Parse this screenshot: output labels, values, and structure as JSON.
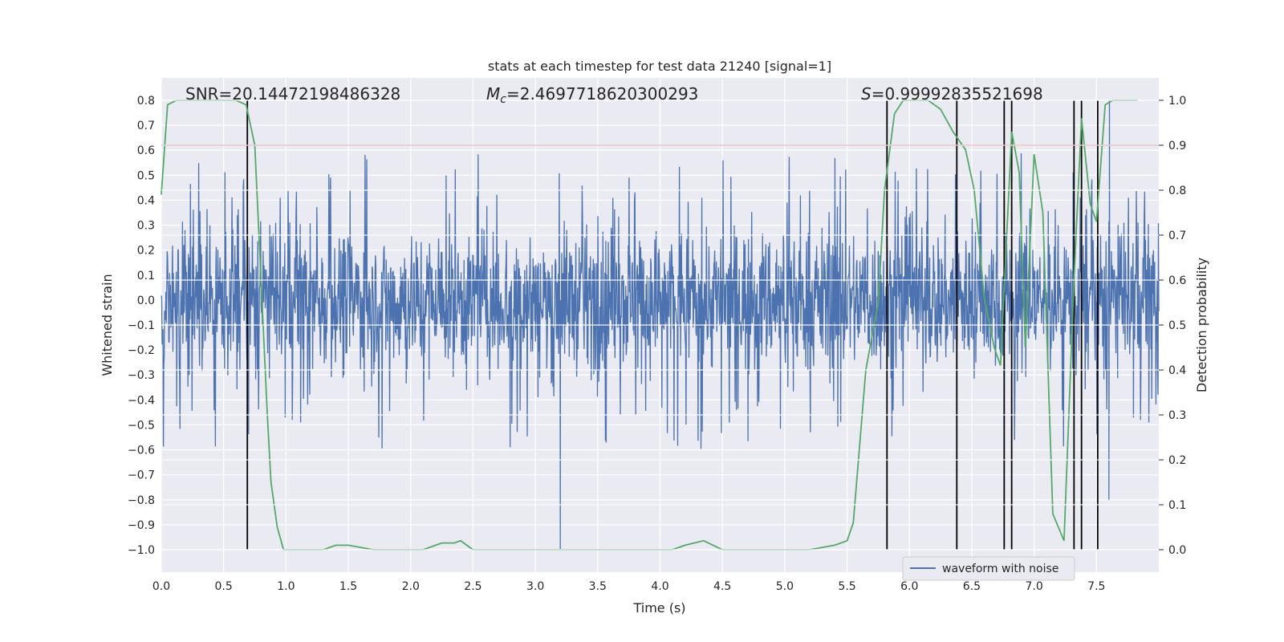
{
  "chart_data": {
    "type": "line",
    "title": "stats at each timestep for test data 21240 [signal=1]",
    "xlabel": "Time (s)",
    "ylabel_left": "Whitened strain",
    "ylabel_right": "Detection probability",
    "xlim": [
      0.0,
      8.0
    ],
    "ylim_left": [
      -1.09,
      0.89
    ],
    "ylim_right": [
      -0.05,
      1.05
    ],
    "x_ticks": [
      "0.0",
      "0.5",
      "1.0",
      "1.5",
      "2.0",
      "2.5",
      "3.0",
      "3.5",
      "4.0",
      "4.5",
      "5.0",
      "5.5",
      "6.0",
      "6.5",
      "7.0",
      "7.5"
    ],
    "x_tick_values": [
      0,
      0.5,
      1,
      1.5,
      2,
      2.5,
      3,
      3.5,
      4,
      4.5,
      5,
      5.5,
      6,
      6.5,
      7,
      7.5
    ],
    "y_left_ticks": [
      "0.8",
      "0.7",
      "0.6",
      "0.5",
      "0.4",
      "0.3",
      "0.2",
      "0.1",
      "0.0",
      "−0.1",
      "−0.2",
      "−0.3",
      "−0.4",
      "−0.5",
      "−0.6",
      "−0.7",
      "−0.8",
      "−0.9",
      "−1.0"
    ],
    "y_left_tick_values": [
      0.8,
      0.7,
      0.6,
      0.5,
      0.4,
      0.3,
      0.2,
      0.1,
      0,
      -0.1,
      -0.2,
      -0.3,
      -0.4,
      -0.5,
      -0.6,
      -0.7,
      -0.8,
      -0.9,
      -1.0
    ],
    "y_right_ticks": [
      "1.0",
      "0.9",
      "0.8",
      "0.7",
      "0.6",
      "0.5",
      "0.4",
      "0.3",
      "0.2",
      "0.1",
      "0.0"
    ],
    "y_right_tick_values": [
      1.0,
      0.9,
      0.8,
      0.7,
      0.6,
      0.5,
      0.4,
      0.3,
      0.2,
      0.1,
      0.0
    ],
    "annotations": {
      "snr": "SNR=20.14472198486328",
      "mc_symbol": "M",
      "mc_sub": "c",
      "mc_value": "=2.4697718620300293",
      "s_symbol": "S",
      "s_value": "=0.99992835521698"
    },
    "legend": {
      "label": "waveform with noise",
      "location": "lower-right"
    },
    "threshold": {
      "probability": 0.9,
      "color": "#c44e52"
    },
    "waveform": {
      "name": "waveform with noise",
      "color": "#4c72b0",
      "typical_amplitude": 0.25,
      "peak_amplitude": 0.6,
      "notable_spikes": [
        {
          "x": 3.2,
          "min": -1.0
        },
        {
          "x": 7.6,
          "max": 0.8,
          "min": -0.8
        }
      ]
    },
    "detection_probability": {
      "name": "detection probability",
      "color": "#55a868",
      "x": [
        0.0,
        0.05,
        0.12,
        0.2,
        0.3,
        0.4,
        0.5,
        0.6,
        0.68,
        0.75,
        0.8,
        0.85,
        0.88,
        0.93,
        0.98,
        1.0,
        1.1,
        1.3,
        1.4,
        1.5,
        1.7,
        1.9,
        2.1,
        2.2,
        2.25,
        2.35,
        2.4,
        2.5,
        2.6,
        2.8,
        3.0,
        3.2,
        3.3,
        3.5,
        3.7,
        3.9,
        4.1,
        4.2,
        4.35,
        4.5,
        4.8,
        5.0,
        5.2,
        5.4,
        5.5,
        5.55,
        5.65,
        5.75,
        5.8,
        5.88,
        5.95,
        6.05,
        6.15,
        6.25,
        6.35,
        6.45,
        6.52,
        6.6,
        6.68,
        6.73,
        6.82,
        6.88,
        6.93,
        7.0,
        7.07,
        7.15,
        7.24,
        7.32,
        7.38,
        7.45,
        7.5,
        7.57,
        7.63,
        7.7,
        7.83
      ],
      "values": [
        0.79,
        0.99,
        1.0,
        1.0,
        1.0,
        1.0,
        1.0,
        1.0,
        0.99,
        0.9,
        0.6,
        0.3,
        0.15,
        0.05,
        0.0,
        0.0,
        0.0,
        0.0,
        0.01,
        0.01,
        0.0,
        0.0,
        0.0,
        0.01,
        0.015,
        0.015,
        0.02,
        0.0,
        0.0,
        0.0,
        0.0,
        0.0,
        0.0,
        0.0,
        0.0,
        0.0,
        0.0,
        0.01,
        0.02,
        0.0,
        0.0,
        0.0,
        0.0,
        0.01,
        0.02,
        0.06,
        0.4,
        0.55,
        0.8,
        0.97,
        1.0,
        1.0,
        1.0,
        0.98,
        0.93,
        0.89,
        0.8,
        0.56,
        0.45,
        0.41,
        0.93,
        0.84,
        0.45,
        0.88,
        0.75,
        0.08,
        0.02,
        0.6,
        0.96,
        0.77,
        0.73,
        0.99,
        1.0,
        1.0,
        1.0
      ]
    },
    "vertical_markers": {
      "color": "#000000",
      "x": [
        0.69,
        5.82,
        6.38,
        6.76,
        6.82,
        7.32,
        7.38,
        7.51
      ]
    }
  }
}
